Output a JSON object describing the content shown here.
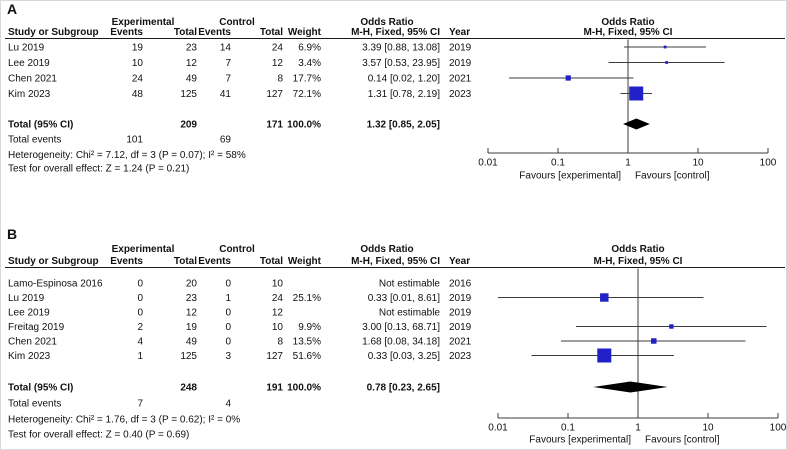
{
  "figure_title": "Forest plots of odds ratios (M-H, fixed effect)",
  "style": {
    "marker_color": "#2121c8",
    "diamond_color": "#000000",
    "line_color": "#3c3c3c",
    "rule_color": "#1a1a1a",
    "text_color": "#111111"
  },
  "chart_data": [
    {
      "type": "forest",
      "panel_label": "A",
      "effect_measure": "Odds Ratio",
      "method": "M-H, Fixed, 95% CI",
      "columns": {
        "study": "Study or Subgroup",
        "group_experimental": "Experimental",
        "group_control": "Control",
        "events": "Events",
        "total": "Total",
        "weight": "Weight",
        "or_header": "Odds Ratio",
        "or_subheader": "M-H, Fixed, 95% CI",
        "year": "Year",
        "plot_header": "Odds Ratio",
        "plot_subheader": "M-H, Fixed, 95% CI"
      },
      "studies": [
        {
          "study": "Lu 2019",
          "exp_events": "19",
          "exp_total": "23",
          "ctrl_events": "14",
          "ctrl_total": "24",
          "weight_text": "6.9%",
          "weight": 6.9,
          "or": 3.39,
          "ci_low": 0.88,
          "ci_high": 13.08,
          "or_ci_text": "3.39 [0.88, 13.08]",
          "year": "2019"
        },
        {
          "study": "Lee 2019",
          "exp_events": "10",
          "exp_total": "12",
          "ctrl_events": "7",
          "ctrl_total": "12",
          "weight_text": "3.4%",
          "weight": 3.4,
          "or": 3.57,
          "ci_low": 0.53,
          "ci_high": 23.95,
          "or_ci_text": "3.57 [0.53, 23.95]",
          "year": "2019"
        },
        {
          "study": "Chen 2021",
          "exp_events": "24",
          "exp_total": "49",
          "ctrl_events": "7",
          "ctrl_total": "8",
          "weight_text": "17.7%",
          "weight": 17.7,
          "or": 0.14,
          "ci_low": 0.02,
          "ci_high": 1.2,
          "or_ci_text": "0.14 [0.02, 1.20]",
          "year": "2021"
        },
        {
          "study": "Kim 2023",
          "exp_events": "48",
          "exp_total": "125",
          "ctrl_events": "41",
          "ctrl_total": "127",
          "weight_text": "72.1%",
          "weight": 72.1,
          "or": 1.31,
          "ci_low": 0.78,
          "ci_high": 2.19,
          "or_ci_text": "1.31 [0.78, 2.19]",
          "year": "2023"
        }
      ],
      "total": {
        "label": "Total (95% CI)",
        "exp_total": "209",
        "ctrl_total": "171",
        "weight_text": "100.0%",
        "or": 1.32,
        "ci_low": 0.85,
        "ci_high": 2.05,
        "or_ci_text": "1.32 [0.85, 2.05]"
      },
      "total_events": {
        "label": "Total events",
        "exp": "101",
        "ctrl": "69"
      },
      "heterogeneity": "Heterogeneity: Chi² = 7.12, df = 3 (P = 0.07); I² = 58%",
      "overall_effect": "Test for overall effect: Z = 1.24 (P = 0.21)",
      "axis": {
        "scale": "log",
        "ticks": [
          0.01,
          0.1,
          1,
          10,
          100
        ],
        "tick_labels": [
          "0.01",
          "0.1",
          "1",
          "10",
          "100"
        ],
        "favours_left": "Favours [experimental]",
        "favours_right": "Favours [control]"
      }
    },
    {
      "type": "forest",
      "panel_label": "B",
      "effect_measure": "Odds Ratio",
      "method": "M-H, Fixed, 95% CI",
      "columns": {
        "study": "Study or Subgroup",
        "group_experimental": "Experimental",
        "group_control": "Control",
        "events": "Events",
        "total": "Total",
        "weight": "Weight",
        "or_header": "Odds Ratio",
        "or_subheader": "M-H, Fixed, 95% CI",
        "year": "Year",
        "plot_header": "Odds Ratio",
        "plot_subheader": "M-H, Fixed, 95% CI"
      },
      "studies": [
        {
          "study": "Lamo-Espinosa 2016",
          "exp_events": "0",
          "exp_total": "20",
          "ctrl_events": "0",
          "ctrl_total": "10",
          "weight_text": "",
          "weight": null,
          "or": null,
          "ci_low": null,
          "ci_high": null,
          "or_ci_text": "Not estimable",
          "year": "2016"
        },
        {
          "study": "Lu 2019",
          "exp_events": "0",
          "exp_total": "23",
          "ctrl_events": "1",
          "ctrl_total": "24",
          "weight_text": "25.1%",
          "weight": 25.1,
          "or": 0.33,
          "ci_low": 0.01,
          "ci_high": 8.61,
          "or_ci_text": "0.33 [0.01, 8.61]",
          "year": "2019"
        },
        {
          "study": "Lee 2019",
          "exp_events": "0",
          "exp_total": "12",
          "ctrl_events": "0",
          "ctrl_total": "12",
          "weight_text": "",
          "weight": null,
          "or": null,
          "ci_low": null,
          "ci_high": null,
          "or_ci_text": "Not estimable",
          "year": "2019"
        },
        {
          "study": "Freitag 2019",
          "exp_events": "2",
          "exp_total": "19",
          "ctrl_events": "0",
          "ctrl_total": "10",
          "weight_text": "9.9%",
          "weight": 9.9,
          "or": 3.0,
          "ci_low": 0.13,
          "ci_high": 68.71,
          "or_ci_text": "3.00 [0.13, 68.71]",
          "year": "2019"
        },
        {
          "study": "Chen 2021",
          "exp_events": "4",
          "exp_total": "49",
          "ctrl_events": "0",
          "ctrl_total": "8",
          "weight_text": "13.5%",
          "weight": 13.5,
          "or": 1.68,
          "ci_low": 0.08,
          "ci_high": 34.18,
          "or_ci_text": "1.68 [0.08, 34.18]",
          "year": "2021"
        },
        {
          "study": "Kim 2023",
          "exp_events": "1",
          "exp_total": "125",
          "ctrl_events": "3",
          "ctrl_total": "127",
          "weight_text": "51.6%",
          "weight": 51.6,
          "or": 0.33,
          "ci_low": 0.03,
          "ci_high": 3.25,
          "or_ci_text": "0.33 [0.03, 3.25]",
          "year": "2023"
        }
      ],
      "total": {
        "label": "Total (95% CI)",
        "exp_total": "248",
        "ctrl_total": "191",
        "weight_text": "100.0%",
        "or": 0.78,
        "ci_low": 0.23,
        "ci_high": 2.65,
        "or_ci_text": "0.78 [0.23, 2.65]"
      },
      "total_events": {
        "label": "Total events",
        "exp": "7",
        "ctrl": "4"
      },
      "heterogeneity": "Heterogeneity: Chi² = 1.76, df = 3 (P = 0.62); I² = 0%",
      "overall_effect": "Test for overall effect: Z = 0.40 (P = 0.69)",
      "axis": {
        "scale": "log",
        "ticks": [
          0.01,
          0.1,
          1,
          10,
          100
        ],
        "tick_labels": [
          "0.01",
          "0.1",
          "1",
          "10",
          "100"
        ],
        "favours_left": "Favours [experimental]",
        "favours_right": "Favours [control]"
      }
    }
  ]
}
